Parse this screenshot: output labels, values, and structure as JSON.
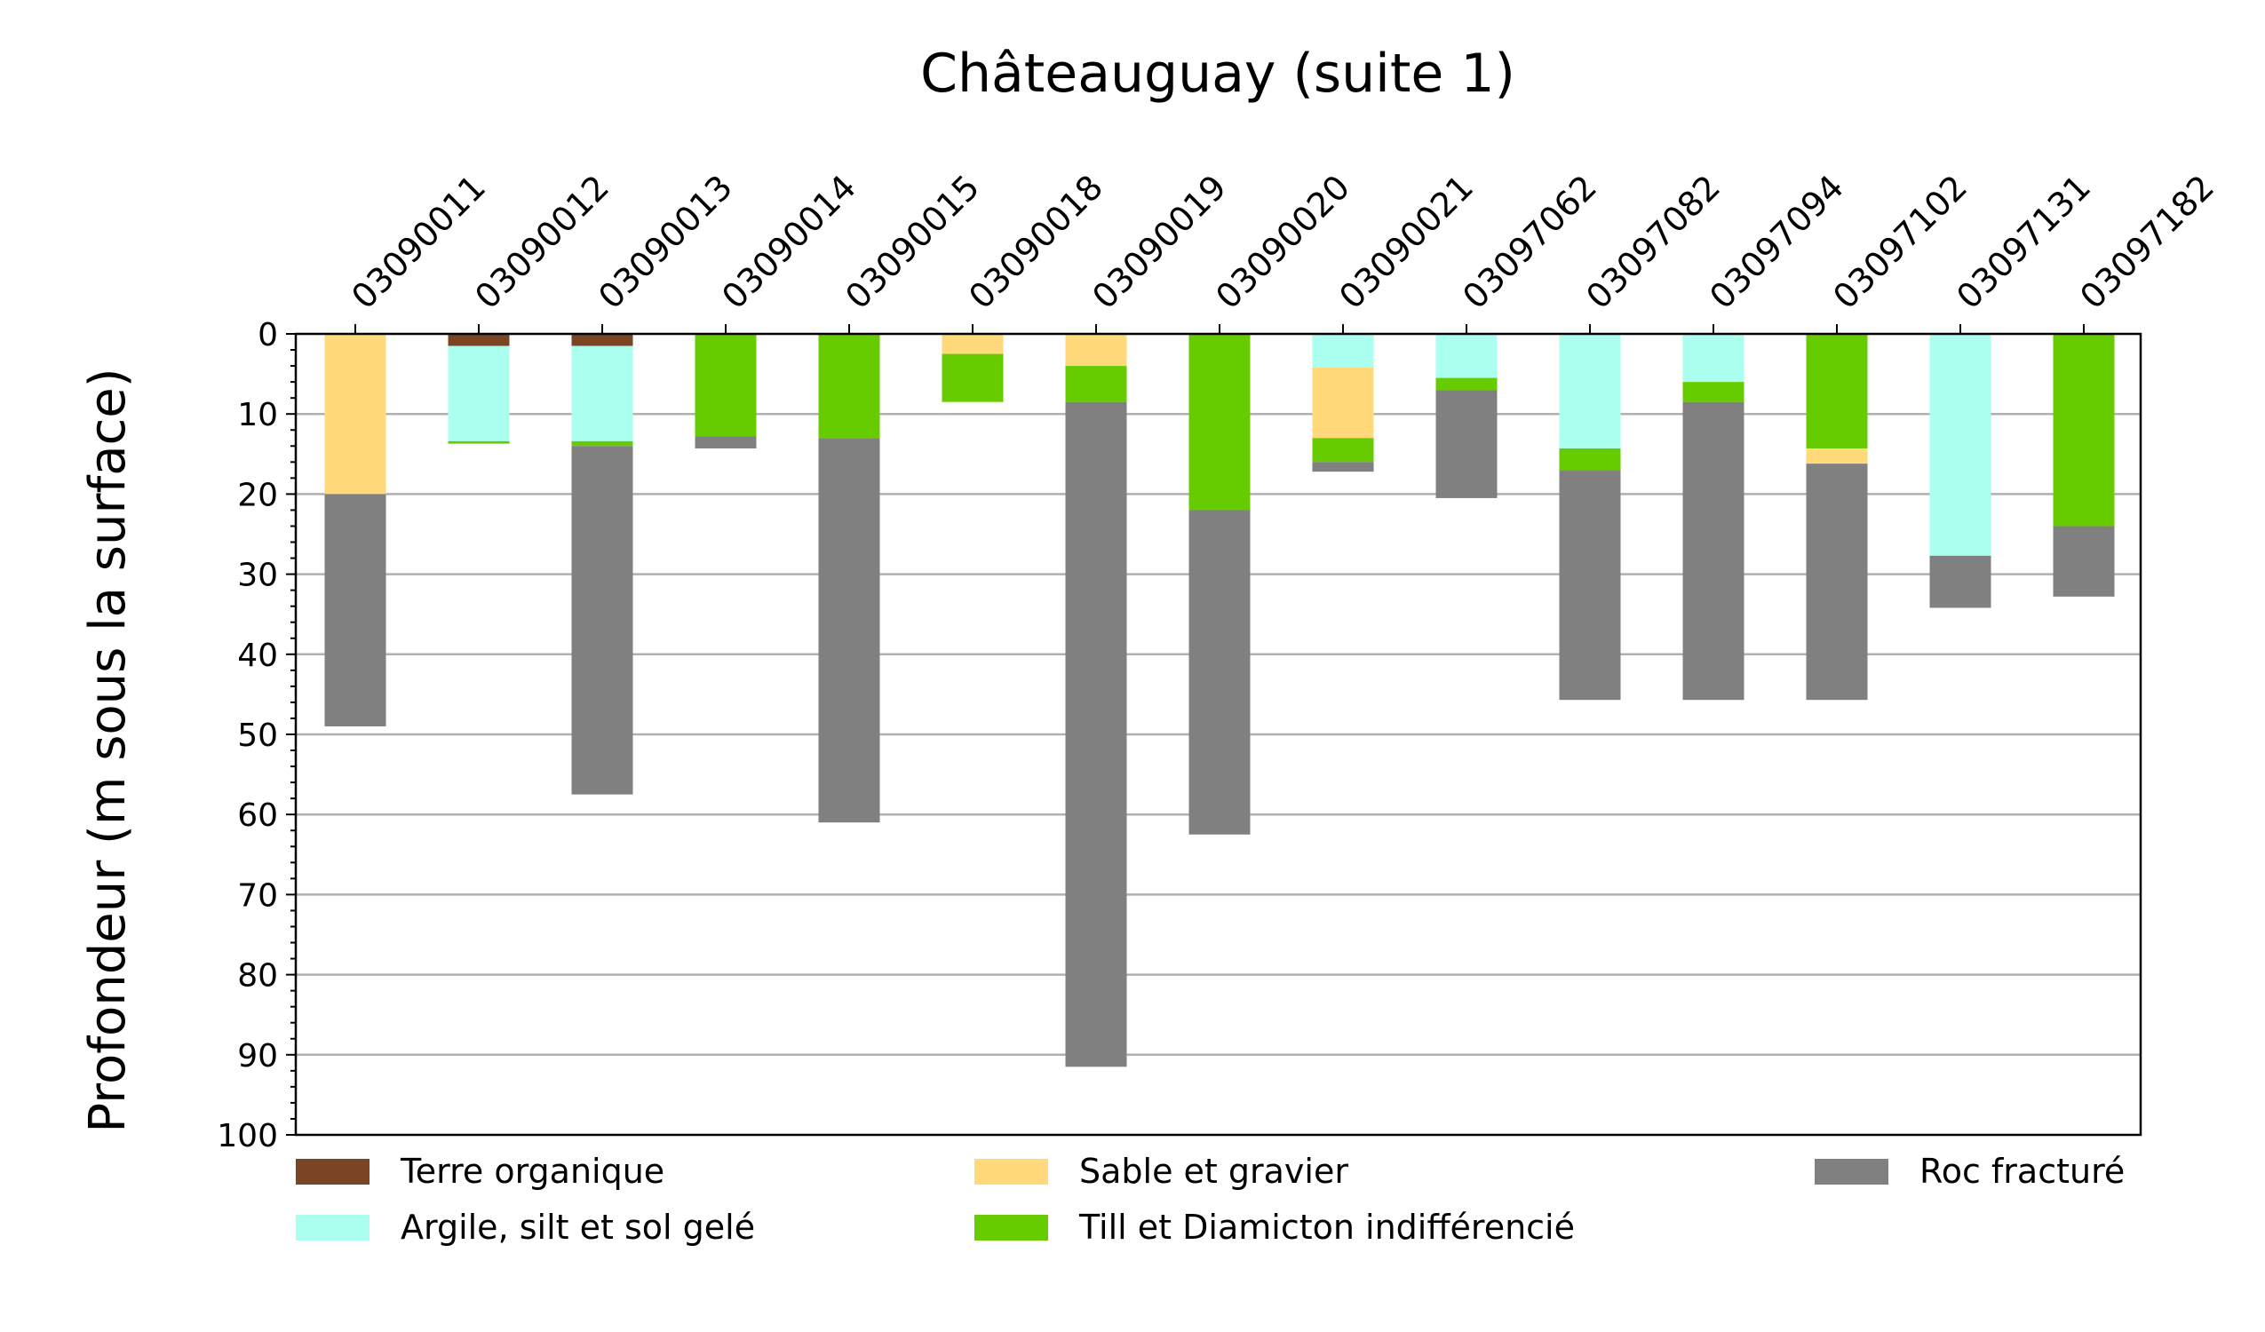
{
  "chart_data": {
    "type": "bar",
    "orientation": "stacked-vertical-inverted-depth",
    "title": "Châteauguay (suite 1)",
    "ylabel": "Profondeur (m sous la surface)",
    "xlabel": "",
    "ylim": [
      0,
      100
    ],
    "y_inverted": true,
    "y_ticks": [
      0,
      10,
      20,
      30,
      40,
      50,
      60,
      70,
      80,
      90,
      100
    ],
    "grid": "horizontal",
    "x_axis_position": "top",
    "categories": [
      "03090011",
      "03090012",
      "03090013",
      "03090014",
      "03090015",
      "03090018",
      "03090019",
      "03090020",
      "03090021",
      "03097062",
      "03097082",
      "03097094",
      "03097102",
      "03097131",
      "03097182"
    ],
    "layer_types": [
      {
        "key": "terre",
        "name": "Terre organique",
        "color": "#7b4424"
      },
      {
        "key": "argile",
        "name": "Argile, silt et sol gelé",
        "color": "#aaffee"
      },
      {
        "key": "sable",
        "name": "Sable et gravier",
        "color": "#ffd97a"
      },
      {
        "key": "till",
        "name": "Till et Diamicton indifférencié",
        "color": "#66cc00"
      },
      {
        "key": "roc",
        "name": "Roc fracturé",
        "color": "#808080"
      }
    ],
    "legend_order": [
      "terre",
      "sable",
      "roc",
      "argile",
      "till"
    ],
    "wells": [
      {
        "id": "03090011",
        "layers": [
          {
            "type": "sable",
            "top": 0,
            "bottom": 20
          },
          {
            "type": "roc",
            "top": 20,
            "bottom": 49
          }
        ]
      },
      {
        "id": "03090012",
        "layers": [
          {
            "type": "terre",
            "top": 0,
            "bottom": 1.5
          },
          {
            "type": "argile",
            "top": 1.5,
            "bottom": 13.4
          },
          {
            "type": "till",
            "top": 13.4,
            "bottom": 13.7
          }
        ]
      },
      {
        "id": "03090013",
        "layers": [
          {
            "type": "terre",
            "top": 0,
            "bottom": 1.5
          },
          {
            "type": "argile",
            "top": 1.5,
            "bottom": 13.4
          },
          {
            "type": "till",
            "top": 13.4,
            "bottom": 14
          },
          {
            "type": "roc",
            "top": 14,
            "bottom": 57.5
          }
        ]
      },
      {
        "id": "03090014",
        "layers": [
          {
            "type": "till",
            "top": 0,
            "bottom": 12.8
          },
          {
            "type": "roc",
            "top": 12.8,
            "bottom": 14.3
          }
        ]
      },
      {
        "id": "03090015",
        "layers": [
          {
            "type": "till",
            "top": 0,
            "bottom": 13
          },
          {
            "type": "roc",
            "top": 13,
            "bottom": 61
          }
        ]
      },
      {
        "id": "03090018",
        "layers": [
          {
            "type": "sable",
            "top": 0,
            "bottom": 2.5
          },
          {
            "type": "till",
            "top": 2.5,
            "bottom": 8.5
          }
        ]
      },
      {
        "id": "03090019",
        "layers": [
          {
            "type": "sable",
            "top": 0,
            "bottom": 4
          },
          {
            "type": "till",
            "top": 4,
            "bottom": 8.5
          },
          {
            "type": "roc",
            "top": 8.5,
            "bottom": 91.5
          }
        ]
      },
      {
        "id": "03090020",
        "layers": [
          {
            "type": "till",
            "top": 0,
            "bottom": 22
          },
          {
            "type": "roc",
            "top": 22,
            "bottom": 62.5
          }
        ]
      },
      {
        "id": "03090021",
        "layers": [
          {
            "type": "argile",
            "top": 0,
            "bottom": 4.2
          },
          {
            "type": "sable",
            "top": 4.2,
            "bottom": 13
          },
          {
            "type": "till",
            "top": 13,
            "bottom": 16
          },
          {
            "type": "roc",
            "top": 16,
            "bottom": 17.2
          }
        ]
      },
      {
        "id": "03097062",
        "layers": [
          {
            "type": "argile",
            "top": 0,
            "bottom": 5.5
          },
          {
            "type": "till",
            "top": 5.5,
            "bottom": 7
          },
          {
            "type": "roc",
            "top": 7,
            "bottom": 20.5
          }
        ]
      },
      {
        "id": "03097082",
        "layers": [
          {
            "type": "argile",
            "top": 0,
            "bottom": 14.3
          },
          {
            "type": "till",
            "top": 14.3,
            "bottom": 17
          },
          {
            "type": "roc",
            "top": 17,
            "bottom": 45.7
          }
        ]
      },
      {
        "id": "03097094",
        "layers": [
          {
            "type": "argile",
            "top": 0,
            "bottom": 6
          },
          {
            "type": "till",
            "top": 6,
            "bottom": 8.5
          },
          {
            "type": "roc",
            "top": 8.5,
            "bottom": 45.7
          }
        ]
      },
      {
        "id": "03097102",
        "layers": [
          {
            "type": "till",
            "top": 0,
            "bottom": 14.3
          },
          {
            "type": "sable",
            "top": 14.3,
            "bottom": 16.2
          },
          {
            "type": "roc",
            "top": 16.2,
            "bottom": 45.7
          }
        ]
      },
      {
        "id": "03097131",
        "layers": [
          {
            "type": "argile",
            "top": 0,
            "bottom": 27.7
          },
          {
            "type": "roc",
            "top": 27.7,
            "bottom": 34.2
          }
        ]
      },
      {
        "id": "03097182",
        "layers": [
          {
            "type": "till",
            "top": 0,
            "bottom": 24
          },
          {
            "type": "roc",
            "top": 24,
            "bottom": 32.8
          }
        ]
      }
    ]
  }
}
